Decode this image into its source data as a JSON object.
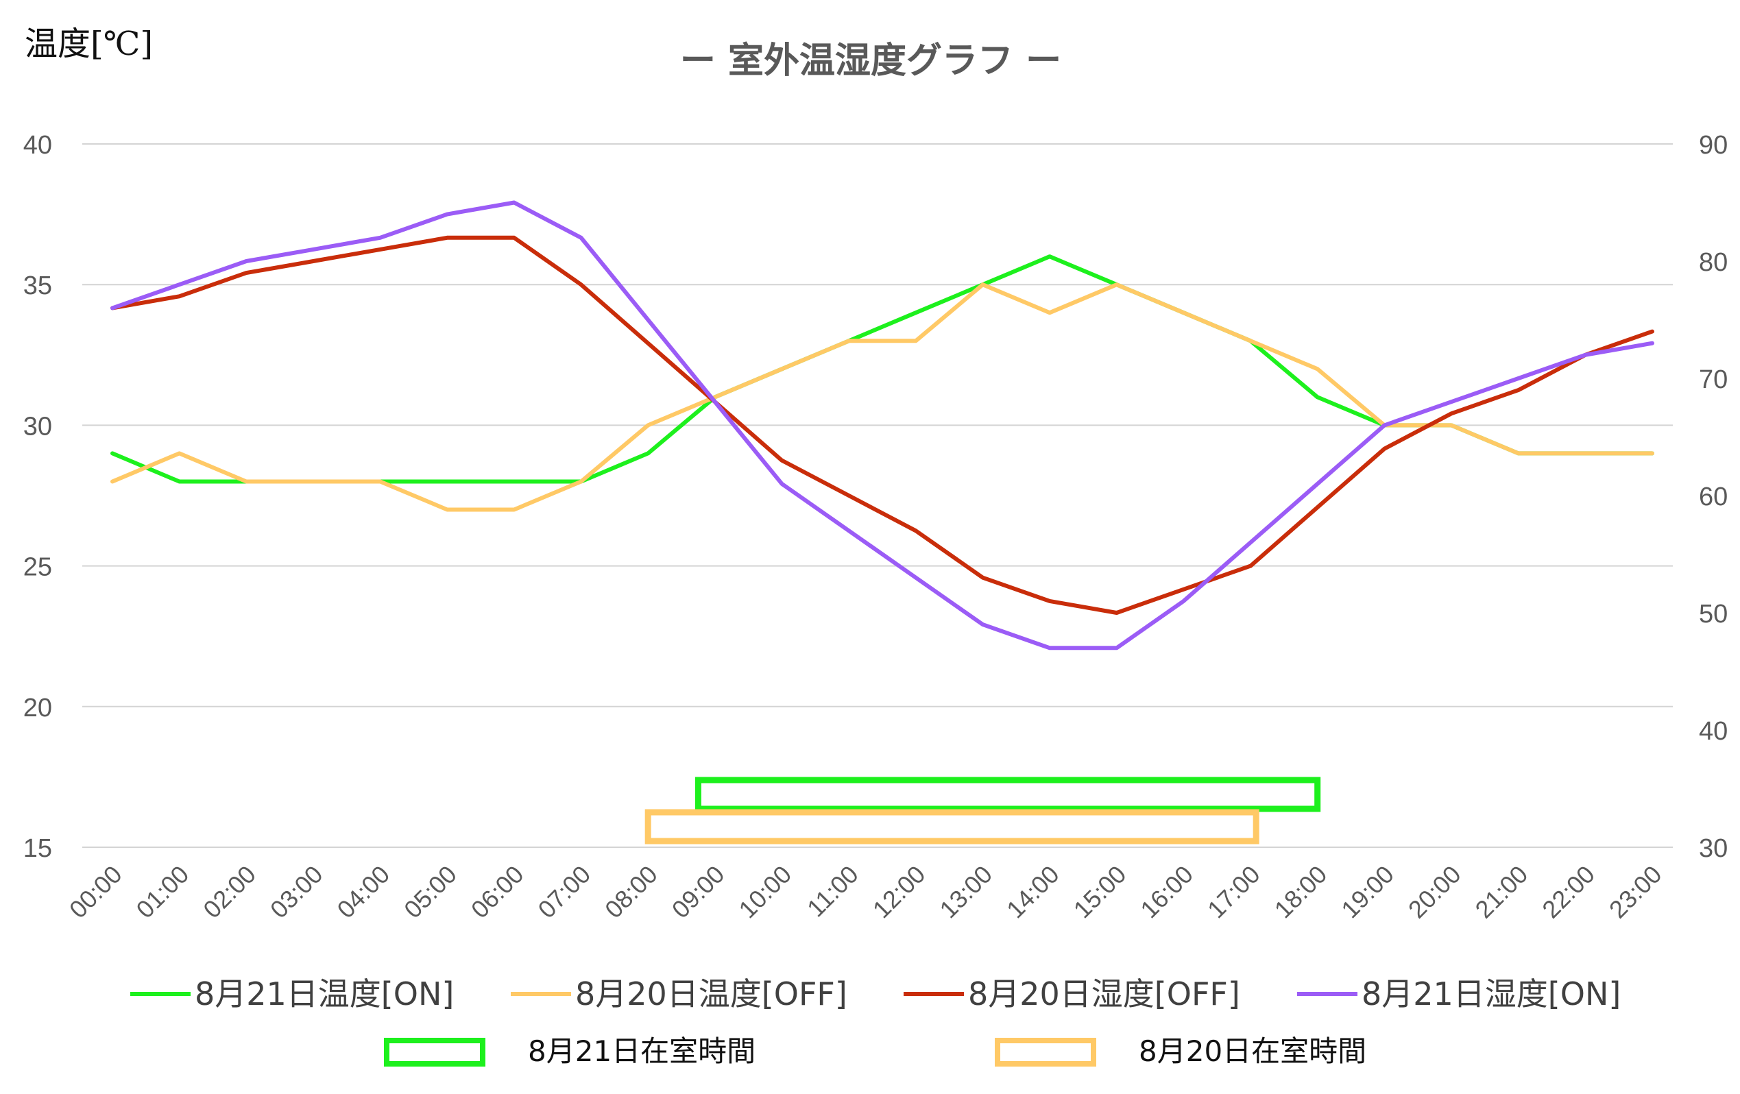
{
  "chart_data": {
    "type": "line",
    "title": "ー 室外温湿度グラフ ー",
    "y_left_label": "温度[℃]",
    "y_left_range": [
      15,
      40
    ],
    "y_left_ticks": [
      15,
      20,
      25,
      30,
      35,
      40
    ],
    "y_right_range": [
      30,
      90
    ],
    "y_right_ticks": [
      30,
      40,
      50,
      60,
      70,
      80,
      90
    ],
    "grid": true,
    "legend_position": "bottom",
    "categories": [
      "00:00",
      "01:00",
      "02:00",
      "03:00",
      "04:00",
      "05:00",
      "06:00",
      "07:00",
      "08:00",
      "09:00",
      "10:00",
      "11:00",
      "12:00",
      "13:00",
      "14:00",
      "15:00",
      "16:00",
      "17:00",
      "18:00",
      "19:00",
      "20:00",
      "21:00",
      "22:00",
      "23:00"
    ],
    "series": [
      {
        "name": "8月21日温度[ON]",
        "axis": "left",
        "color": "#1DF01D",
        "values": [
          29,
          28,
          28,
          28,
          28,
          28,
          28,
          28,
          29,
          31,
          32,
          33,
          34,
          35,
          36,
          35,
          34,
          33,
          31,
          30,
          30,
          29,
          29,
          29
        ]
      },
      {
        "name": "8月20日温度[OFF]",
        "axis": "left",
        "color": "#FFC966",
        "values": [
          28,
          29,
          28,
          28,
          28,
          27,
          27,
          28,
          30,
          31,
          32,
          33,
          33,
          35,
          34,
          35,
          34,
          33,
          32,
          30,
          30,
          29,
          29,
          29
        ]
      },
      {
        "name": "8月20日湿度[OFF]",
        "axis": "right",
        "color": "#C92D0A",
        "values": [
          76,
          77,
          79,
          80,
          81,
          82,
          82,
          78,
          73,
          68,
          63,
          60,
          57,
          53,
          51,
          50,
          52,
          54,
          59,
          64,
          67,
          69,
          72,
          74
        ]
      },
      {
        "name": "8月21日湿度[ON]",
        "axis": "right",
        "color": "#9B5CF6",
        "values": [
          76,
          78,
          80,
          81,
          82,
          84,
          85,
          82,
          75,
          68,
          61,
          57,
          53,
          49,
          47,
          47,
          51,
          56,
          61,
          66,
          68,
          70,
          72,
          73
        ]
      }
    ],
    "occupancy": [
      {
        "name": "8月21日在室時間",
        "color": "#1DF01D",
        "start": "08:45",
        "end": "18:00",
        "level": "upper"
      },
      {
        "name": "8月20日在室時間",
        "color": "#FFC966",
        "start": "08:00",
        "end": "17:05",
        "level": "lower"
      }
    ]
  }
}
